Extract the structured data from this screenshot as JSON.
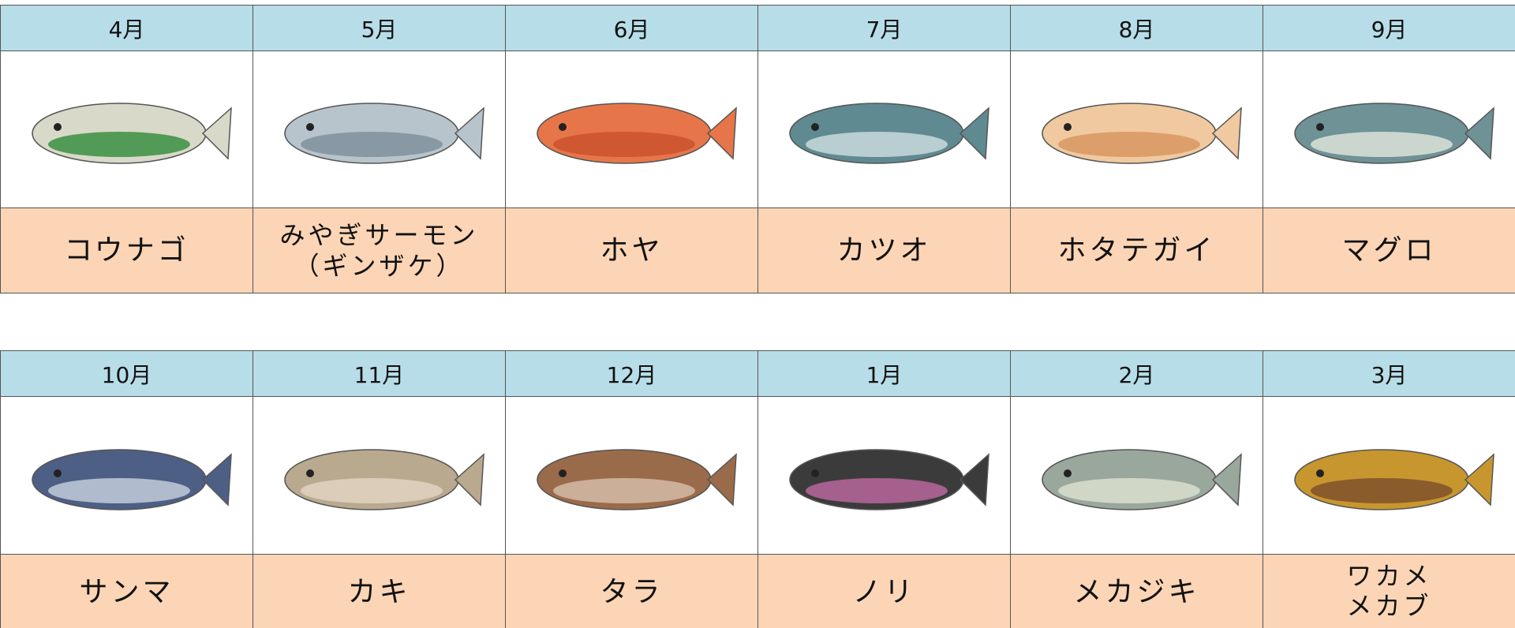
{
  "tables": [
    {
      "columns": [
        {
          "month": "4月",
          "name": [
            "コウナゴ"
          ]
        },
        {
          "month": "5月",
          "name": [
            "みやぎサーモン",
            "（ギンザケ）"
          ]
        },
        {
          "month": "6月",
          "name": [
            "ホヤ"
          ]
        },
        {
          "month": "7月",
          "name": [
            "カツオ"
          ]
        },
        {
          "month": "8月",
          "name": [
            "ホタテガイ"
          ]
        },
        {
          "month": "9月",
          "name": [
            "マグロ"
          ]
        }
      ]
    },
    {
      "columns": [
        {
          "month": "10月",
          "name": [
            "サンマ"
          ]
        },
        {
          "month": "11月",
          "name": [
            "カキ"
          ]
        },
        {
          "month": "12月",
          "name": [
            "タラ"
          ]
        },
        {
          "month": "1月",
          "name": [
            "ノリ"
          ]
        },
        {
          "month": "2月",
          "name": [
            "メカジキ"
          ]
        },
        {
          "month": "3月",
          "name": [
            "ワカメ",
            "メカブ"
          ]
        }
      ]
    }
  ]
}
